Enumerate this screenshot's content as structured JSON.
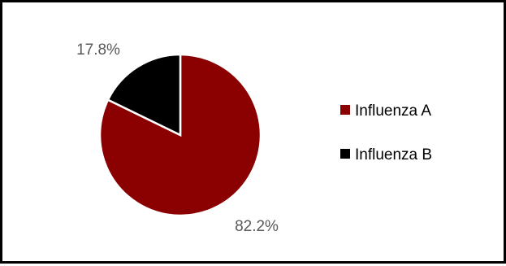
{
  "chart_data": {
    "type": "pie",
    "series": [
      {
        "categories": [
          "Influenza A",
          "Influenza B"
        ],
        "values": [
          82.2,
          17.8
        ],
        "labels": [
          "82.2%",
          "17.8%"
        ],
        "colors": [
          "#8b0000",
          "#000000"
        ]
      }
    ],
    "legend": {
      "position": "right",
      "entries": [
        "Influenza A",
        "Influenza B"
      ]
    },
    "start_angle_deg": 0,
    "direction": "clockwise",
    "slice_border_color": "#ffffff"
  }
}
